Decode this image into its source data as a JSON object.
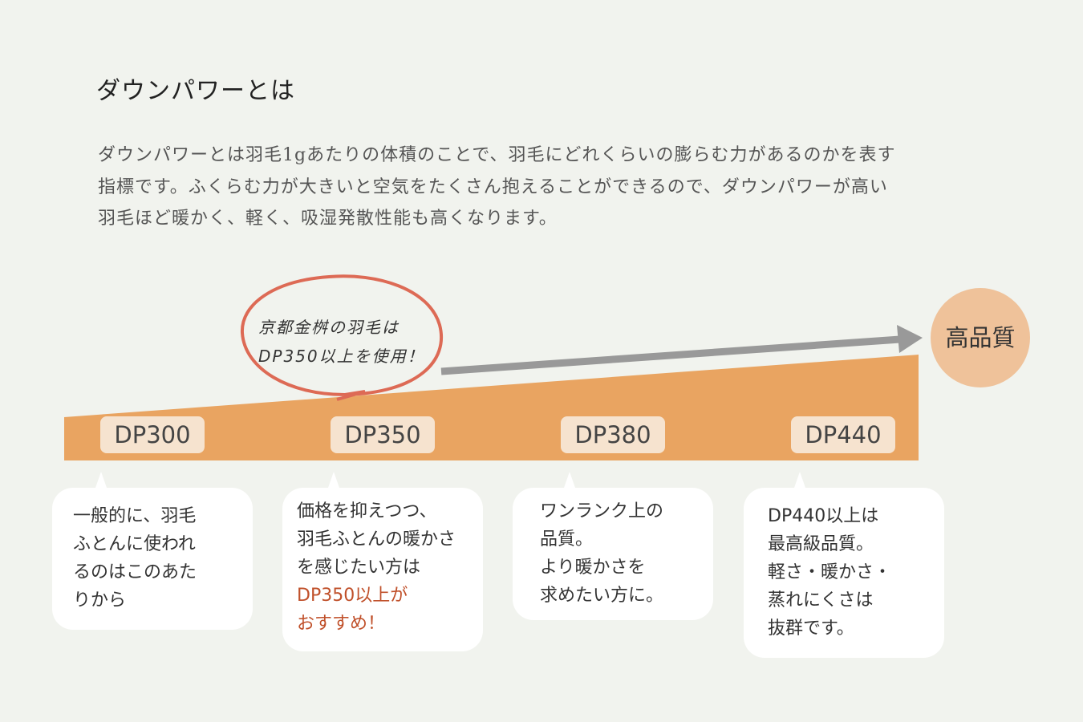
{
  "title": "ダウンパワーとは",
  "intro": [
    "ダウンパワーとは羽毛1gあたりの体積のことで、羽毛にどれくらいの膨らむ力があるのかを表す",
    "指標です。ふくらむ力が大きいと空気をたくさん抱えることができるので、ダウンパワーが高い",
    "羽毛ほど暖かく、軽く、吸湿発散性能も高くなります。"
  ],
  "callout": [
    "京都金桝の羽毛は",
    "DP350以上を使用！"
  ],
  "high_quality_label": "高品質",
  "levels": [
    {
      "label": "DP300",
      "desc": [
        "一般的に、羽毛",
        "ふとんに使われ",
        "るのはこのあた",
        "りから"
      ],
      "highlight": []
    },
    {
      "label": "DP350",
      "desc": [
        "価格を抑えつつ、",
        "羽毛ふとんの暖かさ",
        "を感じたい方は"
      ],
      "highlight": [
        "DP350以上が",
        "おすすめ！"
      ]
    },
    {
      "label": "DP380",
      "desc": [
        "ワンランク上の",
        "品質。",
        "より暖かさを",
        "求めたい方に。"
      ],
      "highlight": []
    },
    {
      "label": "DP440",
      "desc": [
        "DP440以上は",
        "最高級品質。",
        "軽さ・暖かさ・",
        "蒸れにくさは",
        "抜群です。"
      ],
      "highlight": []
    }
  ],
  "colors": {
    "bar": "#e9a461",
    "badge": "#f6e3cf",
    "circle": "#efc29a",
    "arrow": "#999999",
    "callout_ring": "#dd6a55",
    "highlight": "#c0502a"
  }
}
